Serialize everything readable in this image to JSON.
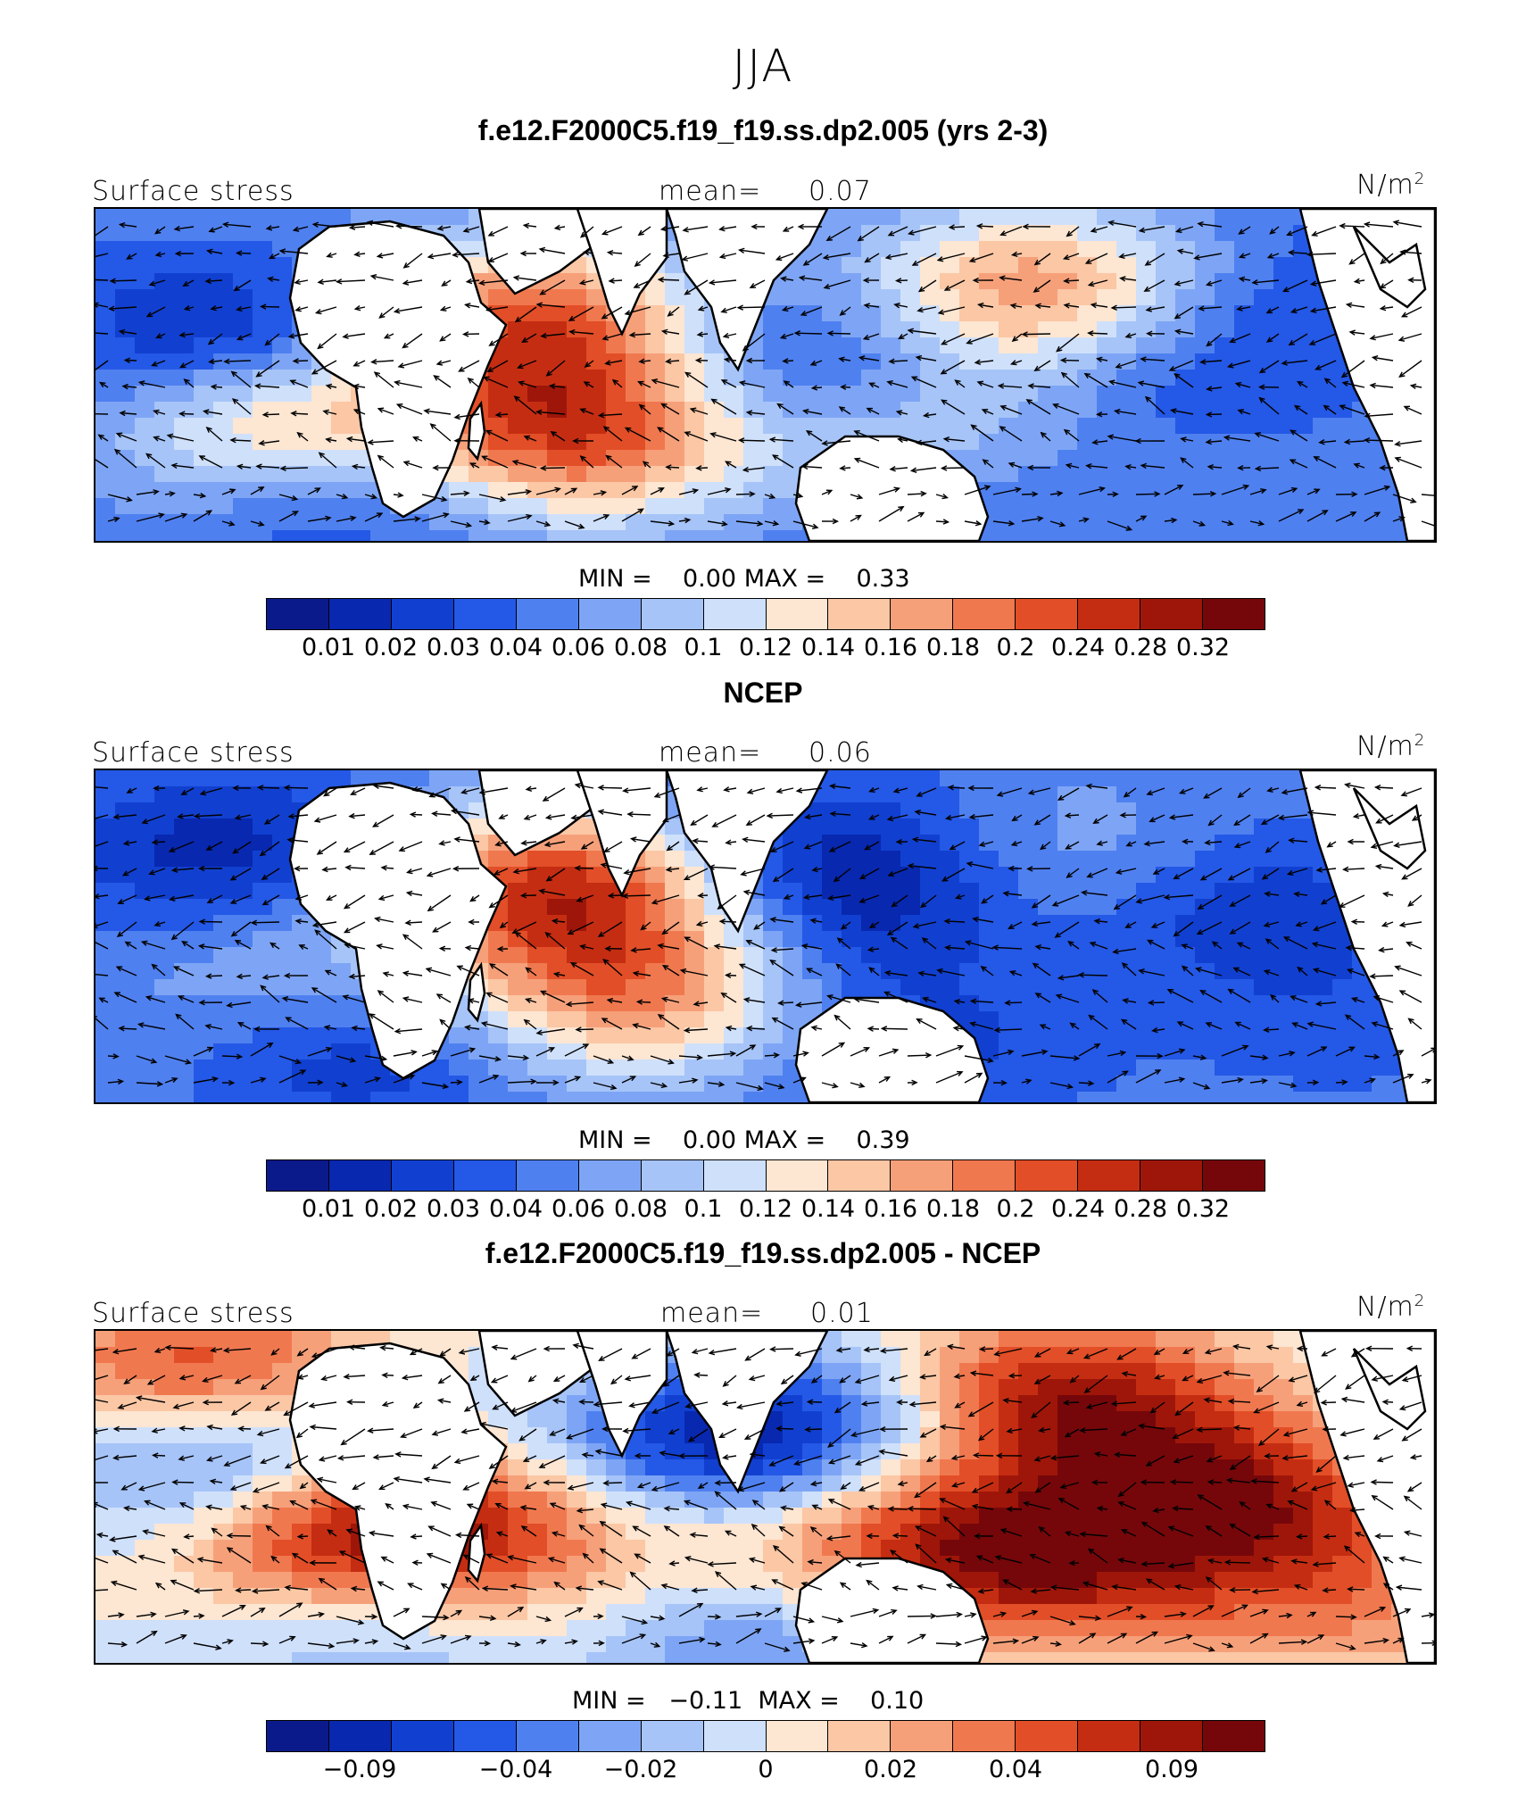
{
  "season": "JJA",
  "chart_data": [
    {
      "type": "heatmap",
      "title": "f.e12.F2000C5.f19_f19.ss.dp2.005 (yrs 2-3)",
      "field_label": "Surface stress",
      "mean_label": "mean=",
      "mean_value": "0.07",
      "units": "N/m",
      "units_sup": "2",
      "min_text": "MIN =    0.00 MAX =    0.33",
      "colorbar_ticks": [
        "0.01",
        "0.02",
        "0.03",
        "0.04",
        "0.06",
        "0.08",
        "0.1",
        "0.12",
        "0.14",
        "0.16",
        "0.18",
        "0.2",
        "0.24",
        "0.28",
        "0.32"
      ],
      "blobs": [
        {
          "lon": 0.1,
          "lat": 0.4,
          "val": -0.95
        },
        {
          "lon": 0.33,
          "lat": 0.33,
          "val": 0.55
        },
        {
          "lon": 0.36,
          "lat": 0.68,
          "val": 0.6
        },
        {
          "lon": 0.54,
          "lat": 0.5,
          "val": -0.85
        },
        {
          "lon": 0.7,
          "lat": 0.25,
          "val": 0.4
        },
        {
          "lon": 0.18,
          "lat": 0.85,
          "val": -0.8
        },
        {
          "lon": 0.62,
          "lat": 0.85,
          "val": -0.75
        },
        {
          "lon": 0.82,
          "lat": 0.45,
          "val": -0.7
        },
        {
          "lon": 0.93,
          "lat": 0.2,
          "val": -0.6
        },
        {
          "lon": 0.14,
          "lat": 0.65,
          "val": 0.35
        },
        {
          "lon": 0.44,
          "lat": 0.22,
          "val": -0.5
        },
        {
          "lon": 0.6,
          "lat": 0.7,
          "val": 0.1
        }
      ]
    },
    {
      "type": "heatmap",
      "title": "NCEP",
      "field_label": "Surface stress",
      "mean_label": "mean=",
      "mean_value": "0.06",
      "units": "N/m",
      "units_sup": "2",
      "min_text": "MIN =    0.00 MAX =    0.39",
      "colorbar_ticks": [
        "0.01",
        "0.02",
        "0.03",
        "0.04",
        "0.06",
        "0.08",
        "0.1",
        "0.12",
        "0.14",
        "0.16",
        "0.18",
        "0.2",
        "0.24",
        "0.28",
        "0.32"
      ],
      "blobs": [
        {
          "lon": 0.1,
          "lat": 0.25,
          "val": -0.9
        },
        {
          "lon": 0.35,
          "lat": 0.35,
          "val": 0.7
        },
        {
          "lon": 0.4,
          "lat": 0.68,
          "val": 0.35
        },
        {
          "lon": 0.58,
          "lat": 0.4,
          "val": -0.85
        },
        {
          "lon": 0.74,
          "lat": 0.3,
          "val": -0.2
        },
        {
          "lon": 0.2,
          "lat": 0.85,
          "val": -0.8
        },
        {
          "lon": 0.62,
          "lat": 0.85,
          "val": -0.7
        },
        {
          "lon": 0.85,
          "lat": 0.4,
          "val": -0.8
        },
        {
          "lon": 0.52,
          "lat": 0.2,
          "val": -0.7
        },
        {
          "lon": 0.15,
          "lat": 0.6,
          "val": -0.2
        },
        {
          "lon": 0.93,
          "lat": 0.75,
          "val": -0.6
        }
      ]
    },
    {
      "type": "heatmap",
      "title": "f.e12.F2000C5.f19_f19.ss.dp2.005 - NCEP",
      "field_label": "Surface stress",
      "mean_label": "mean=",
      "mean_value": "0.01",
      "units": "N/m",
      "units_sup": "2",
      "min_text": "MIN =   −0.11  MAX =    0.10",
      "colorbar_ticks": [
        "−0.09",
        "−0.04",
        "−0.02",
        "0",
        "0.02",
        "0.04",
        "0.09"
      ],
      "blobs": [
        {
          "lon": 0.08,
          "lat": 0.15,
          "val": 0.8
        },
        {
          "lon": 0.1,
          "lat": 0.38,
          "val": -0.85
        },
        {
          "lon": 0.18,
          "lat": 0.6,
          "val": 0.9
        },
        {
          "lon": 0.4,
          "lat": 0.4,
          "val": -0.5
        },
        {
          "lon": 0.52,
          "lat": 0.3,
          "val": -0.8
        },
        {
          "lon": 0.72,
          "lat": 0.2,
          "val": 0.85
        },
        {
          "lon": 0.84,
          "lat": 0.5,
          "val": 0.85
        },
        {
          "lon": 0.7,
          "lat": 0.7,
          "val": 0.75
        },
        {
          "lon": 0.48,
          "lat": 0.9,
          "val": -0.7
        },
        {
          "lon": 0.31,
          "lat": 0.55,
          "val": 0.6
        },
        {
          "lon": 0.93,
          "lat": 0.8,
          "val": 0.4
        },
        {
          "lon": 0.58,
          "lat": 0.62,
          "val": 0.5
        },
        {
          "lon": 0.44,
          "lat": 0.82,
          "val": 0.35
        },
        {
          "lon": 0.2,
          "lat": 0.9,
          "val": -0.3
        }
      ]
    }
  ],
  "palette_colors": [
    "#0b1a8a",
    "#0828b0",
    "#1140d0",
    "#2458e6",
    "#4f80f0",
    "#7ea5f5",
    "#a6c4f8",
    "#cfe0fb",
    "#fde6d2",
    "#fbc7a5",
    "#f6a07a",
    "#f0784f",
    "#e24e27",
    "#c52d12",
    "#9e1609",
    "#75070a"
  ],
  "land_color": "#ffffff",
  "coast_color": "#000000"
}
